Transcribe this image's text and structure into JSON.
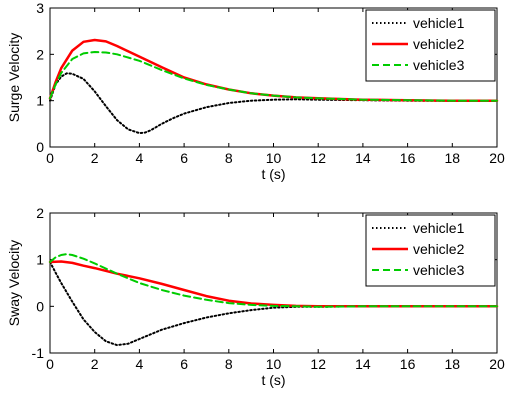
{
  "chart_data": [
    {
      "type": "line",
      "xlabel": "t (s)",
      "ylabel": "Surge Velocity",
      "xlim": [
        0,
        20
      ],
      "ylim": [
        0,
        3
      ],
      "xticks": [
        "0",
        "2",
        "4",
        "6",
        "8",
        "10",
        "12",
        "14",
        "16",
        "18",
        "20"
      ],
      "yticks": [
        "0",
        "1",
        "2",
        "3"
      ],
      "legend_position": "top-right",
      "series": [
        {
          "name": "vehicle1",
          "color": "#000000",
          "dash": "dotted",
          "x": [
            0,
            0.25,
            0.5,
            0.75,
            1,
            1.5,
            2,
            2.5,
            3,
            3.5,
            4,
            4.25,
            4.5,
            5,
            5.5,
            6,
            7,
            8,
            9,
            10,
            11,
            12,
            14,
            16,
            18,
            20
          ],
          "y": [
            1.0,
            1.35,
            1.52,
            1.59,
            1.58,
            1.47,
            1.2,
            0.88,
            0.58,
            0.38,
            0.3,
            0.31,
            0.36,
            0.5,
            0.62,
            0.72,
            0.86,
            0.95,
            1.0,
            1.02,
            1.03,
            1.02,
            1.01,
            1.0,
            1.0,
            1.0
          ]
        },
        {
          "name": "vehicle2",
          "color": "#ff0000",
          "dash": "solid",
          "x": [
            0,
            0.25,
            0.5,
            1,
            1.5,
            2,
            2.5,
            3,
            4,
            5,
            6,
            7,
            8,
            9,
            10,
            11,
            12,
            14,
            16,
            18,
            20
          ],
          "y": [
            1.05,
            1.4,
            1.7,
            2.08,
            2.27,
            2.31,
            2.28,
            2.18,
            1.95,
            1.72,
            1.5,
            1.35,
            1.24,
            1.16,
            1.11,
            1.07,
            1.05,
            1.02,
            1.01,
            1.0,
            1.0
          ]
        },
        {
          "name": "vehicle3",
          "color": "#00cc00",
          "dash": "dashed",
          "x": [
            0,
            0.25,
            0.5,
            1,
            1.5,
            2,
            2.5,
            3,
            4,
            5,
            6,
            7,
            8,
            9,
            10,
            11,
            12,
            14,
            16,
            18,
            20
          ],
          "y": [
            1.05,
            1.35,
            1.6,
            1.9,
            2.02,
            2.05,
            2.04,
            2.0,
            1.86,
            1.66,
            1.48,
            1.34,
            1.24,
            1.16,
            1.11,
            1.07,
            1.05,
            1.02,
            1.01,
            1.0,
            1.0
          ]
        }
      ]
    },
    {
      "type": "line",
      "xlabel": "t (s)",
      "ylabel": "Sway Velocity",
      "xlim": [
        0,
        20
      ],
      "ylim": [
        -1,
        2
      ],
      "xticks": [
        "0",
        "2",
        "4",
        "6",
        "8",
        "10",
        "12",
        "14",
        "16",
        "18",
        "20"
      ],
      "yticks": [
        "-1",
        "0",
        "1",
        "2"
      ],
      "legend_position": "top-right",
      "series": [
        {
          "name": "vehicle1",
          "color": "#000000",
          "dash": "dotted",
          "x": [
            0,
            0.25,
            0.5,
            1,
            1.5,
            2,
            2.5,
            3,
            3.5,
            4,
            5,
            6,
            7,
            8,
            9,
            10,
            11,
            12,
            14,
            16,
            18,
            20
          ],
          "y": [
            0.95,
            0.72,
            0.5,
            0.1,
            -0.28,
            -0.55,
            -0.75,
            -0.83,
            -0.8,
            -0.7,
            -0.5,
            -0.36,
            -0.24,
            -0.15,
            -0.08,
            -0.03,
            -0.01,
            -0.01,
            0.0,
            0.0,
            0.0,
            0.0
          ]
        },
        {
          "name": "vehicle2",
          "color": "#ff0000",
          "dash": "solid",
          "x": [
            0,
            0.5,
            1,
            1.5,
            2,
            3,
            4,
            5,
            6,
            7,
            8,
            9,
            10,
            11,
            12,
            14,
            16,
            18,
            20
          ],
          "y": [
            0.95,
            0.96,
            0.93,
            0.87,
            0.82,
            0.7,
            0.6,
            0.48,
            0.35,
            0.22,
            0.12,
            0.06,
            0.03,
            0.01,
            0.0,
            0.0,
            0.0,
            0.0,
            0.0
          ]
        },
        {
          "name": "vehicle3",
          "color": "#00cc00",
          "dash": "dashed",
          "x": [
            0,
            0.25,
            0.5,
            0.75,
            1,
            1.5,
            2,
            3,
            4,
            5,
            6,
            7,
            8,
            9,
            10,
            11,
            12,
            14,
            16,
            18,
            20
          ],
          "y": [
            0.95,
            1.05,
            1.1,
            1.12,
            1.1,
            1.02,
            0.92,
            0.7,
            0.5,
            0.35,
            0.23,
            0.14,
            0.07,
            0.03,
            0.01,
            0.0,
            -0.01,
            0.0,
            0.0,
            0.0,
            0.0
          ]
        }
      ]
    }
  ]
}
